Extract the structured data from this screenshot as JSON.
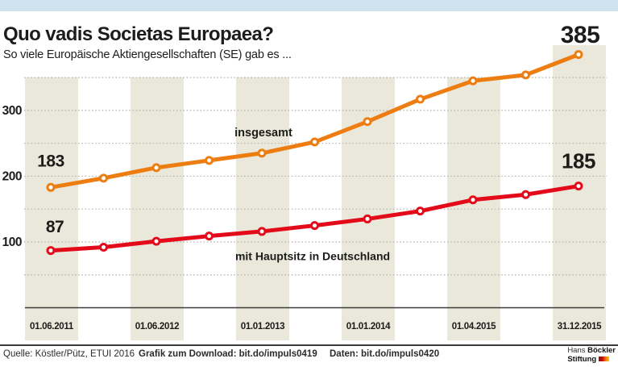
{
  "header": {
    "title": "Quo vadis Societas Europaea?",
    "subtitle": "So viele Europäische Aktiengesellschaften (SE) gab es ..."
  },
  "chart_data": {
    "type": "line",
    "title": "Quo vadis Societas Europaea?",
    "subtitle": "So viele Europäische Aktiengesellschaften (SE) gab es ...",
    "x_tick_labels": [
      "01.06.2011",
      "01.06.2012",
      "01.01.2013",
      "01.01.2014",
      "01.04.2015",
      "31.12.2015"
    ],
    "y_tick_values": [
      100,
      200,
      300
    ],
    "y_tick_labels": [
      "100",
      "200",
      "300"
    ],
    "ylim": [
      0,
      360
    ],
    "gridline_values": [
      50,
      100,
      150,
      200,
      250,
      300,
      350
    ],
    "grid": "dotted horizontal gridlines with alternating beige vertical bands",
    "legend_position": "inline labels next to lines",
    "n_points": 11,
    "series": [
      {
        "name": "insgesamt",
        "color": "#ee7d11",
        "values": [
          183,
          197,
          213,
          224,
          235,
          252,
          283,
          317,
          345,
          354,
          385
        ],
        "first_value_label": "183",
        "last_value_label": "385"
      },
      {
        "name": "mit Hauptsitz in Deutschland",
        "color": "#e30b1a",
        "values": [
          87,
          92,
          101,
          109,
          116,
          125,
          135,
          147,
          164,
          172,
          185
        ],
        "first_value_label": "87",
        "last_value_label": "185"
      }
    ]
  },
  "footer": {
    "source": "Quelle: Köstler/Pütz, ETUI 2016",
    "download": "Grafik zum Download: bit.do/impuls0419",
    "data": "Daten: bit.do/impuls0420"
  },
  "logo": {
    "hans": "Hans",
    "boeckler": "Böckler",
    "stiftung": "Stiftung"
  },
  "colors": {
    "topbar": "#cfe3ee",
    "band": "#eae8da",
    "orange": "#ee7d11",
    "red": "#e30b1a",
    "gridline": "#b6b4a6",
    "baseline": "#3c3c3c"
  }
}
